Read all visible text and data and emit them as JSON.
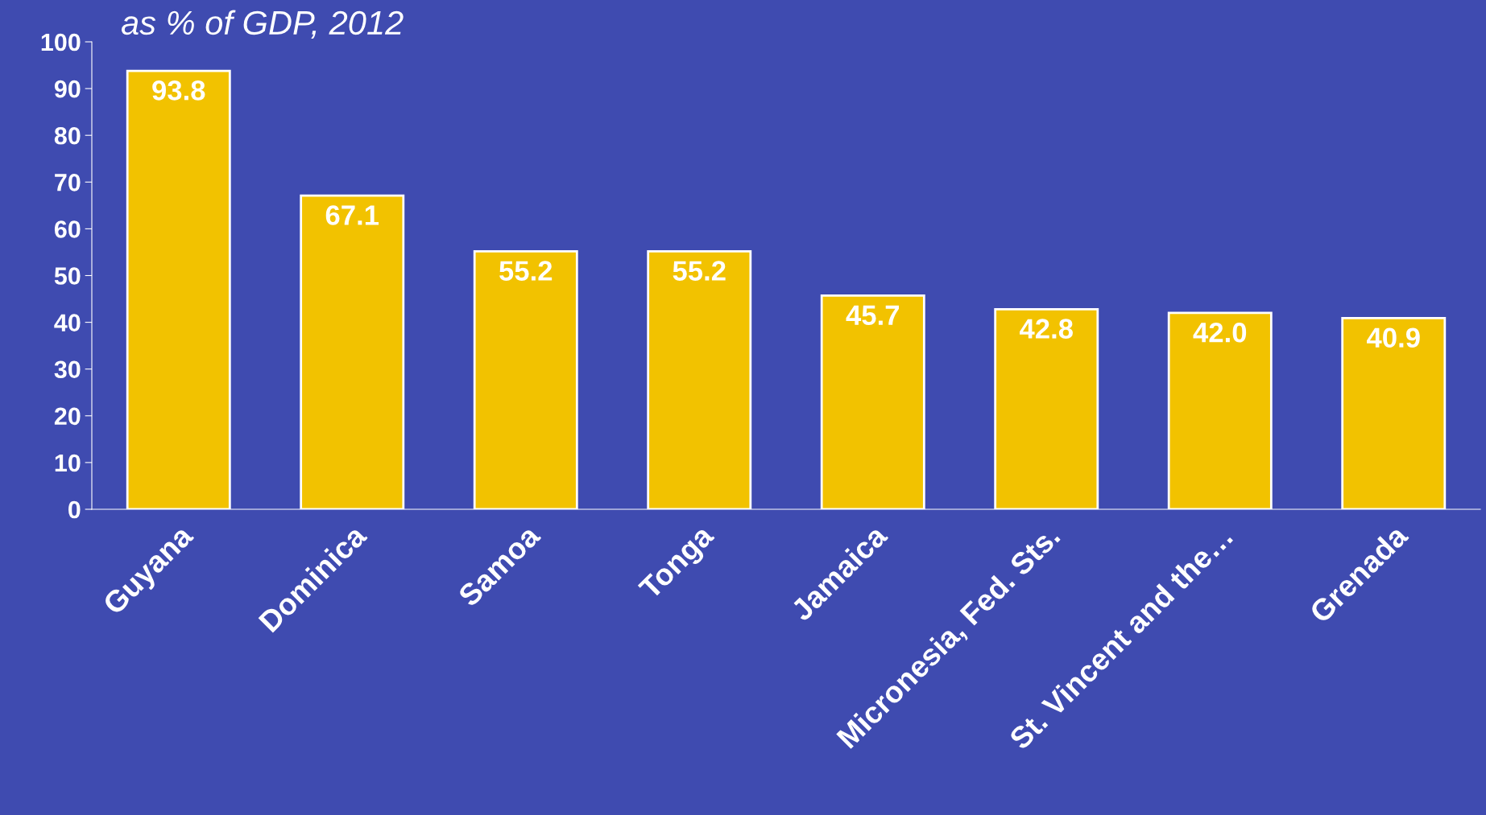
{
  "chart_data": {
    "type": "bar",
    "title": "as % of GDP, 2012",
    "categories": [
      "Guyana",
      "Dominica",
      "Samoa",
      "Tonga",
      "Jamaica",
      "Micronesia, Fed. Sts.",
      "St. Vincent and the…",
      "Grenada"
    ],
    "values": [
      93.8,
      67.1,
      55.2,
      55.2,
      45.7,
      42.8,
      42.0,
      40.9
    ],
    "color": "#f2c200",
    "ylim": [
      0,
      100
    ],
    "yticks": [
      0,
      10,
      20,
      30,
      40,
      50,
      60,
      70,
      80,
      90,
      100
    ],
    "value_labels": [
      "93.8",
      "67.1",
      "55.2",
      "55.2",
      "45.7",
      "42.8",
      "42.0",
      "40.9"
    ],
    "grid": false
  }
}
